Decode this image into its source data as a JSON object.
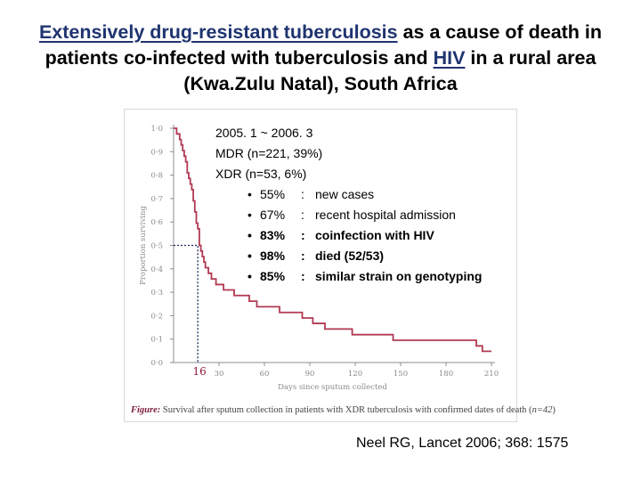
{
  "slide": {
    "title_part1": "Extensively drug-resistant tuberculosis",
    "title_part2": " as a cause of death in patients co-infected with tuberculosis and ",
    "title_part3": "HIV",
    "title_part4": " in a rural area (Kwa.Zulu Natal), South Africa",
    "citation": "Neel RG, Lancet 2006; 368: 1575"
  },
  "notes": {
    "period": "2005. 1 ~ 2006. 3",
    "mdr": "MDR (n=221, 39%)",
    "xdr": "XDR (n=53, 6%)",
    "bullets": [
      {
        "bullet": "•",
        "pct": "55%",
        "colon": ":",
        "text": "new cases"
      },
      {
        "bullet": "•",
        "pct": "67%",
        "colon": ":",
        "text": "recent hospital admission"
      },
      {
        "bullet": "•",
        "pct": "83%",
        "colon": ":",
        "text": "coinfection with HIV"
      },
      {
        "bullet": "•",
        "pct": "98%",
        "colon": ":",
        "text": "died (52/53)"
      },
      {
        "bullet": "•",
        "pct": "85%",
        "colon": ":",
        "text": "similar strain on genotyping"
      }
    ]
  },
  "figure": {
    "caption_label": "Figure:",
    "caption_text": " Survival after sputum collection in patients with XDR tuberculosis with confirmed dates of death (",
    "caption_n": "n=42",
    "caption_end": ")"
  },
  "chart_data": {
    "type": "line",
    "xlabel": "Days since sputum collected",
    "ylabel": "Proportion surviving",
    "xlim": [
      0,
      210
    ],
    "ylim": [
      0,
      1.0
    ],
    "x_ticks": [
      30,
      60,
      90,
      120,
      150,
      180,
      210
    ],
    "x_tick_labels": [
      "30",
      "60",
      "90",
      "120",
      "150",
      "180",
      "210"
    ],
    "y_ticks": [
      0,
      0.1,
      0.2,
      0.3,
      0.4,
      0.5,
      0.6,
      0.7,
      0.8,
      0.9,
      1.0
    ],
    "y_tick_labels": [
      "0·0",
      "0·1",
      "0·2",
      "0·3",
      "0·4",
      "0·5",
      "0·6",
      "0·7",
      "0·8",
      "0·9",
      "1·0"
    ],
    "color": "#b03a52",
    "annotation": {
      "x": 16,
      "y": 0.5,
      "label": "16",
      "color": "#8b1a3a"
    },
    "steps": [
      [
        0,
        1.0
      ],
      [
        2,
        0.976
      ],
      [
        4,
        0.952
      ],
      [
        5,
        0.929
      ],
      [
        6,
        0.905
      ],
      [
        7,
        0.881
      ],
      [
        8,
        0.857
      ],
      [
        9,
        0.81
      ],
      [
        10,
        0.786
      ],
      [
        11,
        0.762
      ],
      [
        12,
        0.738
      ],
      [
        13,
        0.69
      ],
      [
        14,
        0.643
      ],
      [
        15,
        0.595
      ],
      [
        16,
        0.571
      ],
      [
        17,
        0.5
      ],
      [
        18,
        0.476
      ],
      [
        19,
        0.452
      ],
      [
        20,
        0.429
      ],
      [
        21,
        0.405
      ],
      [
        23,
        0.381
      ],
      [
        25,
        0.357
      ],
      [
        28,
        0.333
      ],
      [
        33,
        0.31
      ],
      [
        40,
        0.286
      ],
      [
        50,
        0.262
      ],
      [
        55,
        0.238
      ],
      [
        70,
        0.214
      ],
      [
        85,
        0.19
      ],
      [
        92,
        0.167
      ],
      [
        100,
        0.143
      ],
      [
        118,
        0.119
      ],
      [
        145,
        0.095
      ],
      [
        200,
        0.071
      ],
      [
        204,
        0.048
      ],
      [
        210,
        0.048
      ]
    ]
  }
}
